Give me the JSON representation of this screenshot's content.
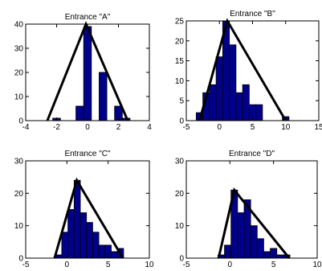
{
  "figure": {
    "background": "#ffffff"
  },
  "style": {
    "bar_fill": "#00008b",
    "bar_edge": "#000000",
    "line_color": "#000000"
  },
  "chart_data": [
    {
      "type": "bar",
      "title": "Entrance \"A\"",
      "xlim": [
        -4,
        4
      ],
      "ylim": [
        0,
        40
      ],
      "xticks": [
        -4,
        -2,
        0,
        2,
        4
      ],
      "yticks": [
        0,
        10,
        20,
        30,
        40
      ],
      "bin_width": 0.5,
      "bins": [
        {
          "x": -2.0,
          "count": 1
        },
        {
          "x": -1.5,
          "count": 0
        },
        {
          "x": -1.0,
          "count": 0
        },
        {
          "x": -0.5,
          "count": 6
        },
        {
          "x": 0.0,
          "count": 39
        },
        {
          "x": 0.5,
          "count": 0
        },
        {
          "x": 1.0,
          "count": 20
        },
        {
          "x": 1.5,
          "count": 0
        },
        {
          "x": 2.0,
          "count": 6
        },
        {
          "x": 2.5,
          "count": 1
        }
      ],
      "triangle": [
        [
          -2.6,
          0
        ],
        [
          -0.1,
          40
        ],
        [
          2.6,
          0
        ]
      ]
    },
    {
      "type": "bar",
      "title": "Entrance \"B\"",
      "xlim": [
        -5,
        15
      ],
      "ylim": [
        0,
        25
      ],
      "xticks": [
        -5,
        0,
        5,
        10,
        15
      ],
      "yticks": [
        0,
        5,
        10,
        15,
        20,
        25
      ],
      "bin_width": 1,
      "bins": [
        {
          "x": -3,
          "count": 2
        },
        {
          "x": -2,
          "count": 7
        },
        {
          "x": -1,
          "count": 9
        },
        {
          "x": 0,
          "count": 16
        },
        {
          "x": 1,
          "count": 25
        },
        {
          "x": 2,
          "count": 19
        },
        {
          "x": 3,
          "count": 7
        },
        {
          "x": 4,
          "count": 9
        },
        {
          "x": 5,
          "count": 4
        },
        {
          "x": 6,
          "count": 4
        },
        {
          "x": 7,
          "count": 0
        },
        {
          "x": 8,
          "count": 0
        },
        {
          "x": 9,
          "count": 0
        },
        {
          "x": 10,
          "count": 1
        }
      ],
      "triangle": [
        [
          -3,
          0
        ],
        [
          1.2,
          25
        ],
        [
          10,
          0
        ]
      ]
    },
    {
      "type": "bar",
      "title": "Entrance \"C\"",
      "xlim": [
        -5,
        10
      ],
      "ylim": [
        0,
        30
      ],
      "xticks": [
        -5,
        0,
        5,
        10
      ],
      "yticks": [
        0,
        10,
        20,
        30
      ],
      "bin_width": 0.75,
      "bins": [
        {
          "x": -1.0,
          "count": 1
        },
        {
          "x": -0.25,
          "count": 8
        },
        {
          "x": 0.5,
          "count": 15
        },
        {
          "x": 1.25,
          "count": 24
        },
        {
          "x": 2.0,
          "count": 14
        },
        {
          "x": 2.75,
          "count": 11
        },
        {
          "x": 3.5,
          "count": 8
        },
        {
          "x": 4.25,
          "count": 4
        },
        {
          "x": 5.0,
          "count": 4
        },
        {
          "x": 5.75,
          "count": 2
        },
        {
          "x": 6.5,
          "count": 3
        }
      ],
      "triangle": [
        [
          -1.5,
          0
        ],
        [
          1.2,
          24
        ],
        [
          6.8,
          0
        ]
      ]
    },
    {
      "type": "bar",
      "title": "Entrance \"D\"",
      "xlim": [
        -5,
        10
      ],
      "ylim": [
        0,
        30
      ],
      "xticks": [
        -5,
        0,
        5,
        10
      ],
      "yticks": [
        0,
        10,
        20,
        30
      ],
      "bin_width": 0.75,
      "bins": [
        {
          "x": -1.0,
          "count": 1
        },
        {
          "x": -0.25,
          "count": 4
        },
        {
          "x": 0.5,
          "count": 21
        },
        {
          "x": 1.25,
          "count": 14
        },
        {
          "x": 2.0,
          "count": 18
        },
        {
          "x": 2.75,
          "count": 10
        },
        {
          "x": 3.5,
          "count": 6
        },
        {
          "x": 4.25,
          "count": 2
        },
        {
          "x": 5.0,
          "count": 3
        },
        {
          "x": 5.75,
          "count": 1
        },
        {
          "x": 6.5,
          "count": 1
        }
      ],
      "triangle": [
        [
          -1.3,
          0
        ],
        [
          0.5,
          21
        ],
        [
          6.8,
          0
        ]
      ]
    }
  ]
}
